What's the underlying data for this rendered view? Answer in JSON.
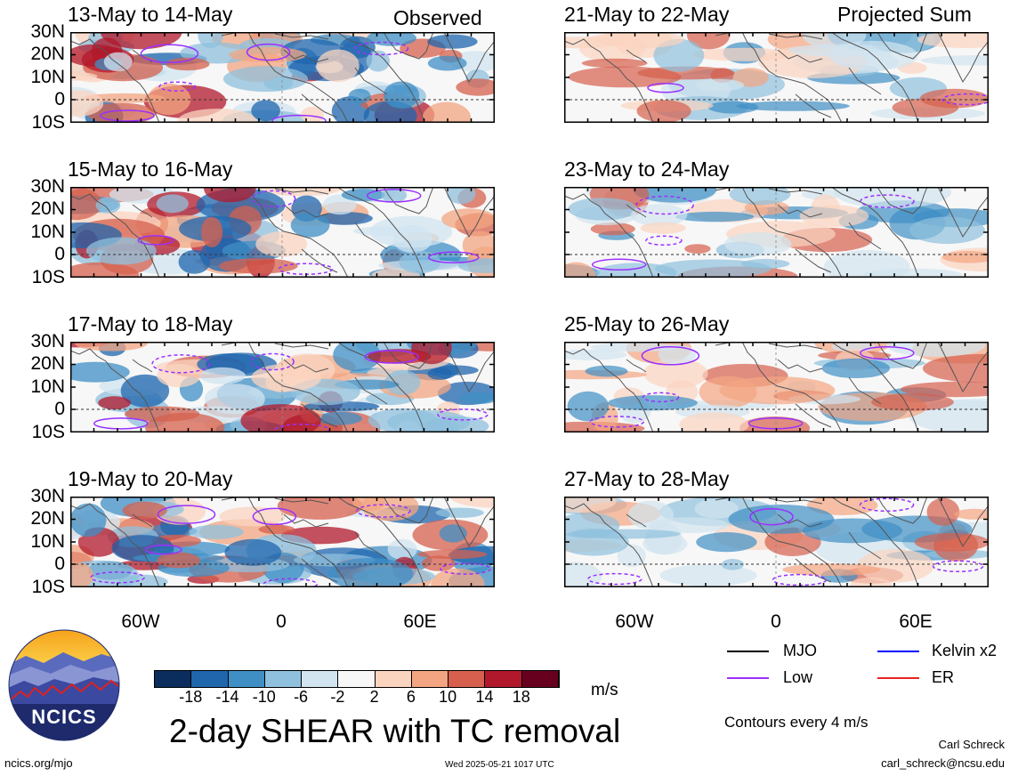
{
  "columns": {
    "left_label": "Observed",
    "right_label": "Projected Sum"
  },
  "panels_left": [
    {
      "title": "13-May to 14-May"
    },
    {
      "title": "15-May to 16-May"
    },
    {
      "title": "17-May to 18-May"
    },
    {
      "title": "19-May to 20-May"
    }
  ],
  "panels_right": [
    {
      "title": "21-May to 22-May"
    },
    {
      "title": "23-May to 24-May"
    },
    {
      "title": "25-May to 26-May"
    },
    {
      "title": "27-May to 28-May"
    }
  ],
  "lat_labels": [
    "30N",
    "20N",
    "10N",
    "0",
    "10S"
  ],
  "lon_labels": [
    "60W",
    "0",
    "60E"
  ],
  "colorbar": {
    "ticks": [
      "-18",
      "-14",
      "-10",
      "-6",
      "-2",
      "2",
      "6",
      "10",
      "14",
      "18"
    ],
    "colors": [
      "#0a2d5e",
      "#1f66ad",
      "#3f8fc5",
      "#8fc0dd",
      "#d2e4f0",
      "#f7f7f7",
      "#fbd4c0",
      "#f3a581",
      "#d6604d",
      "#b1182b",
      "#67001f"
    ],
    "units": "m/s"
  },
  "title": "2-day SHEAR with TC removal",
  "legend": [
    {
      "label": "MJO",
      "color": "#000000"
    },
    {
      "label": "Kelvin x2",
      "color": "#0000ff"
    },
    {
      "label": "Low",
      "color": "#9b30ff"
    },
    {
      "label": "ER",
      "color": "#e8231d"
    }
  ],
  "contour_note": "Contours every 4 m/s",
  "footer": {
    "url": "ncics.org/mjo",
    "timestamp": "Wed 2025-05-21 1017 UTC",
    "author": "Carl Schreck",
    "email": "carl_schreck@ncsu.edu",
    "logo_text": "NCICS"
  }
}
